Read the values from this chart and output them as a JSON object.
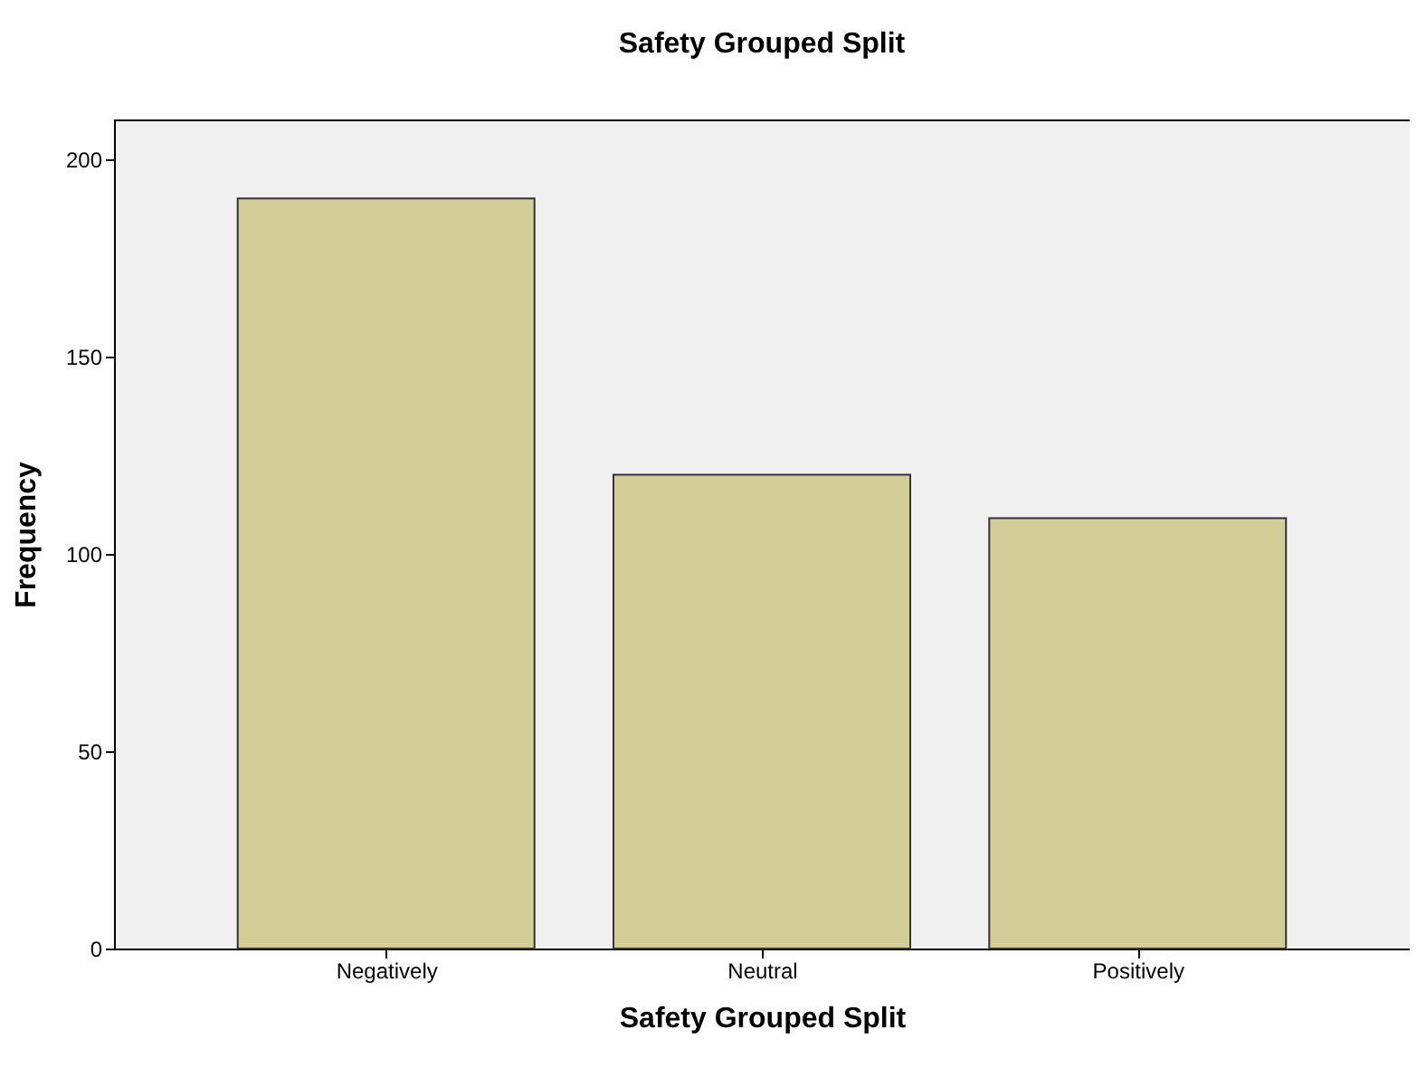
{
  "chart_data": {
    "type": "bar",
    "title": "Safety Grouped Split",
    "xlabel": "Safety Grouped Split",
    "ylabel": "Frequency",
    "categories": [
      "Negatively",
      "Neutral",
      "Positively"
    ],
    "values": [
      190,
      120,
      109
    ],
    "color": "#d3ce97",
    "ylim": [
      0,
      210
    ],
    "yticks": [
      0,
      50,
      100,
      150,
      200
    ],
    "grid": false
  }
}
